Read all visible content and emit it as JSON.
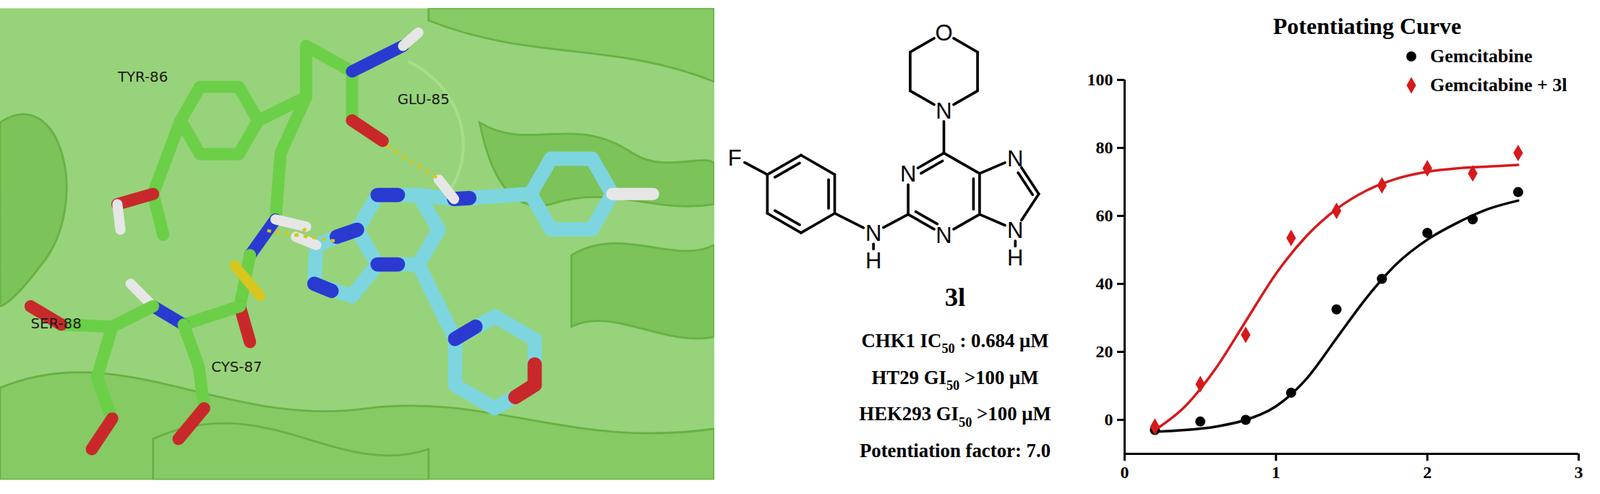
{
  "docking": {
    "residues": [
      "TYR-86",
      "GLU-85",
      "SER-88",
      "CYS-87"
    ]
  },
  "compound": {
    "atoms": [
      "O",
      "N",
      "N",
      "N",
      "N",
      "N",
      "H",
      "N",
      "H",
      "F"
    ],
    "name": "3l",
    "properties": [
      [
        {
          "text": "CHK1 IC"
        },
        {
          "text": "50",
          "sub": true
        },
        {
          "text": " : 0.684 μM"
        }
      ],
      [
        {
          "text": "HT29 GI"
        },
        {
          "text": "50",
          "sub": true
        },
        {
          "text": " >100 μM"
        }
      ],
      [
        {
          "text": "HEK293 GI"
        },
        {
          "text": "50",
          "sub": true
        },
        {
          "text": " >100 μM"
        }
      ],
      [
        {
          "text": "Potentiation factor: 7.0"
        }
      ]
    ]
  },
  "chart_data": {
    "type": "line",
    "title": "Potentiating Curve",
    "xlim": [
      0,
      3
    ],
    "xticks": [
      0,
      1,
      2,
      3
    ],
    "ylim": [
      -10,
      100
    ],
    "yticks": [
      0,
      20,
      40,
      60,
      80,
      100
    ],
    "legend": "top-right",
    "series": [
      {
        "name": "Gemcitabine",
        "color": "#000000",
        "marker": "circle",
        "x": [
          0.2,
          0.5,
          0.8,
          1.1,
          1.4,
          1.7,
          2.0,
          2.3,
          2.6
        ],
        "values": [
          -3,
          -0.5,
          0,
          8,
          32.5,
          41.5,
          55,
          59,
          67
        ],
        "fit_x": [
          0.2,
          0.4,
          0.6,
          0.8,
          1.0,
          1.2,
          1.4,
          1.6,
          1.8,
          2.0,
          2.2,
          2.4,
          2.6
        ],
        "fit_values": [
          -3.5,
          -3,
          -2,
          0,
          4,
          12,
          24,
          36,
          46,
          53,
          58,
          62,
          64.5
        ]
      },
      {
        "name": "Gemcitabine + 3l",
        "color": "#d7191c",
        "marker": "diamond",
        "x": [
          0.2,
          0.5,
          0.8,
          1.1,
          1.4,
          1.7,
          2.0,
          2.3,
          2.6
        ],
        "values": [
          -2,
          10.5,
          25,
          53.5,
          61.5,
          69,
          74,
          72.5,
          78.5
        ],
        "fit_x": [
          0.2,
          0.4,
          0.6,
          0.8,
          1.0,
          1.2,
          1.4,
          1.6,
          1.8,
          2.0,
          2.2,
          2.4,
          2.6
        ],
        "fit_values": [
          -3,
          4,
          15,
          29,
          43,
          54,
          62,
          67.5,
          71,
          73,
          74,
          74.5,
          75
        ]
      }
    ]
  }
}
